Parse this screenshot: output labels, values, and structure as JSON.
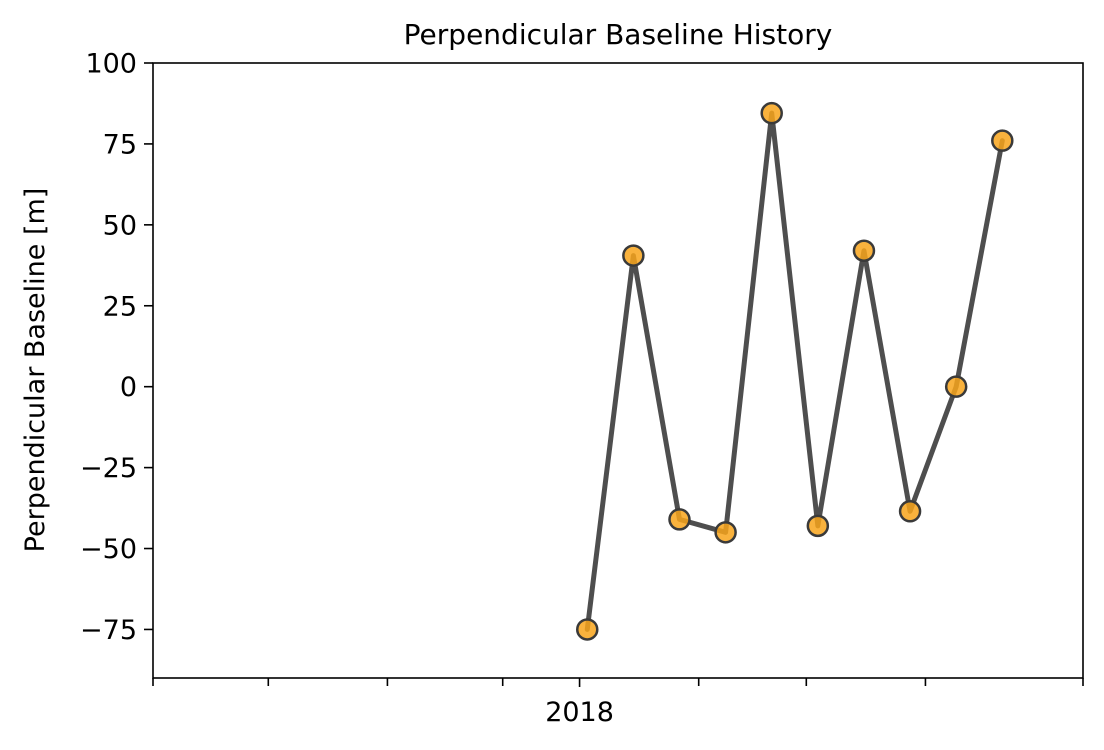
{
  "chart_data": {
    "type": "line",
    "title": "Perpendicular Baseline History",
    "xlabel": "",
    "ylabel": "Perpendicular Baseline [m]",
    "ylim": [
      -90,
      100
    ],
    "y_ticks": [
      100,
      75,
      50,
      25,
      0,
      -25,
      -50,
      -75
    ],
    "y_tick_labels": [
      "100",
      "75",
      "50",
      "25",
      "0",
      "−25",
      "−50",
      "−75"
    ],
    "xlim": [
      "2017-09-12",
      "2018-05-12"
    ],
    "x_labeled_ticks": [
      {
        "date": "2018-01-01",
        "label": "2018"
      }
    ],
    "x_minor_tick_dates": [
      "2017-09-12",
      "2017-10-12",
      "2017-11-12",
      "2017-12-12",
      "2018-02-01",
      "2018-03-01",
      "2018-04-01",
      "2018-05-12"
    ],
    "x": [
      "2018-01-03",
      "2018-01-15",
      "2018-01-27",
      "2018-02-08",
      "2018-02-20",
      "2018-03-04",
      "2018-03-16",
      "2018-03-28",
      "2018-04-09",
      "2018-04-21"
    ],
    "series": [
      {
        "values": [
          -75,
          40.5,
          -41,
          -45,
          84.5,
          -43,
          42,
          -38.5,
          0,
          76
        ]
      }
    ],
    "grid": false,
    "legend": "none",
    "colors": {
      "line": "#444444",
      "marker_fill": "#f8a51b",
      "marker_edge": "#3a3a3a"
    }
  }
}
